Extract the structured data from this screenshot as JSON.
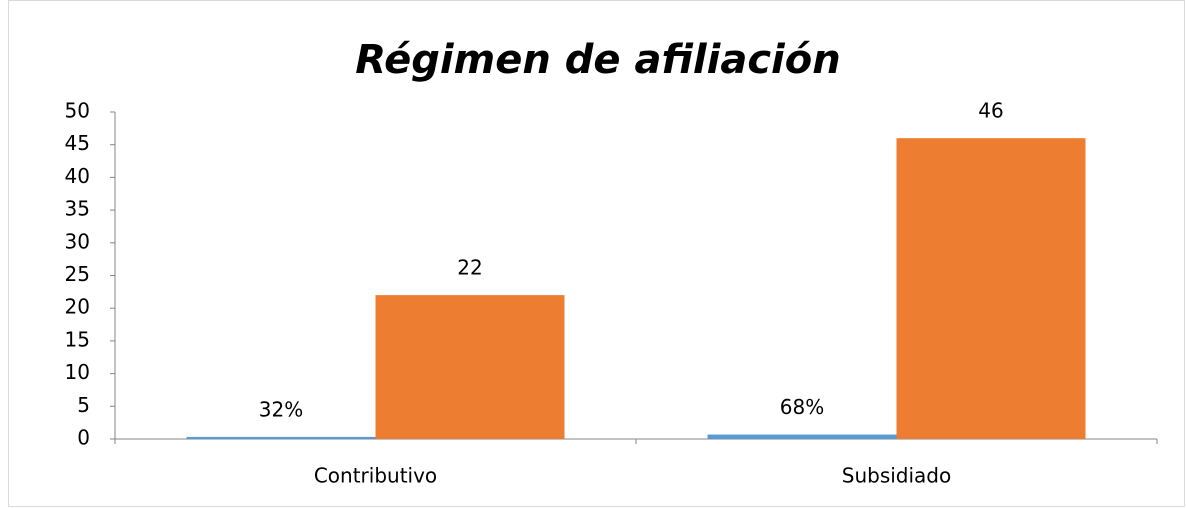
{
  "chart_data": {
    "type": "bar",
    "title": "Régimen de afiliación",
    "categories": [
      "Contributivo",
      "Subsidiado"
    ],
    "series": [
      {
        "color": "#5b9bd5",
        "values": [
          0.32,
          0.68
        ],
        "value_labels": [
          "32%",
          "68%"
        ]
      },
      {
        "color": "#ed7d31",
        "values": [
          22,
          46
        ]
      }
    ],
    "ylim": [
      0,
      50
    ],
    "yticks": [
      0,
      5,
      10,
      15,
      20,
      25,
      30,
      35,
      40,
      45,
      50
    ],
    "grid": false
  }
}
